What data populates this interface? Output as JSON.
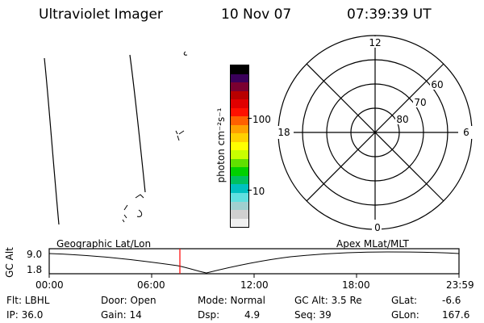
{
  "header": {
    "instrument": "Ultraviolet Imager",
    "date": "10 Nov 07",
    "time": "07:39:39 UT"
  },
  "colorbar": {
    "label": "photon cm⁻²s⁻¹",
    "ticks": [
      "100",
      "10"
    ],
    "colors": [
      "#000000",
      "#3a005a",
      "#7a0030",
      "#b80000",
      "#e00000",
      "#ff1000",
      "#ff6000",
      "#ffa000",
      "#ffd000",
      "#ffff00",
      "#c8ff00",
      "#60e000",
      "#00d000",
      "#00c060",
      "#00c0c0",
      "#60e0e0",
      "#a0d0d0",
      "#d0d0d0",
      "#f0f0f0"
    ]
  },
  "polar": {
    "mlt_labels": {
      "top": "12",
      "left": "18",
      "right": "6",
      "bottom": "0"
    },
    "lat_labels": [
      "60",
      "70",
      "80"
    ]
  },
  "timeline": {
    "left_title": "Geographic Lat/Lon",
    "right_title": "Apex MLat/MLT",
    "ylabel": "GC Alt",
    "y_ticks": [
      "9.0",
      "1.8"
    ],
    "x_ticks": [
      "00:00",
      "06:00",
      "12:00",
      "18:00",
      "23:59"
    ],
    "marker_color": "#ff0000"
  },
  "footer": {
    "filter": "Flt: LBHL",
    "ip": "IP: 36.0",
    "door": "Door: Open",
    "gain": "Gain: 14",
    "mode": "Mode: Normal",
    "dsp_label": "Dsp:",
    "dsp_value": "4.9",
    "gc_alt": "GC Alt: 3.5 Re",
    "seq": "Seq: 39",
    "glat_label": "GLat:",
    "glat_value": "-6.6",
    "glon_label": "GLon:",
    "glon_value": "167.6"
  }
}
